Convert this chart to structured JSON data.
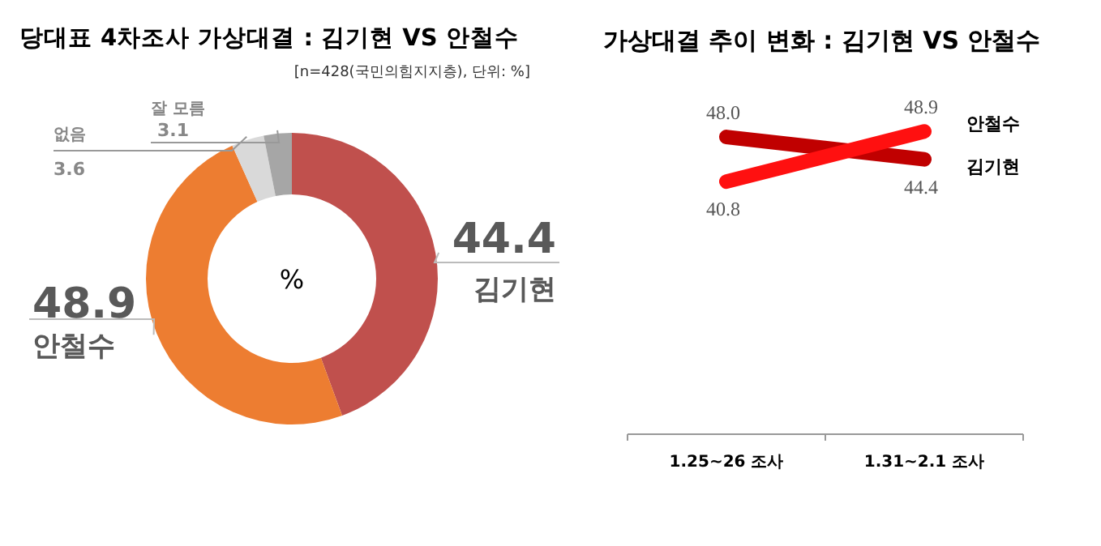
{
  "chart_data": [
    {
      "type": "donut",
      "title": "당대표 4차조사 가상대결 : 김기현 VS 안철수",
      "subtitle": "[n=428(국민의힘지지층), 단위: %]",
      "categories": [
        "김기현",
        "안철수",
        "없음",
        "잘 모름"
      ],
      "values": [
        44.4,
        48.9,
        3.6,
        3.1
      ],
      "colors": [
        "#c0504d",
        "#ed7d31",
        "#d9d9d9",
        "#a6a6a6"
      ],
      "data_labels": true,
      "annotations": [
        "%"
      ]
    },
    {
      "type": "line",
      "title": "가상대결 추이 변화 : 김기현 VS 안철수",
      "categories": [
        "1.25~26 조사",
        "1.31~2.1 조사"
      ],
      "series": [
        {
          "name": "김기현",
          "color": "#c00000",
          "values": [
            48.0,
            44.4
          ],
          "value_labels": [
            "48.0",
            "44.4"
          ]
        },
        {
          "name": "안철수",
          "color": "#ff1010",
          "values": [
            40.8,
            48.9
          ],
          "value_labels": [
            "40.8",
            "48.9"
          ]
        }
      ],
      "legend": "right"
    }
  ]
}
